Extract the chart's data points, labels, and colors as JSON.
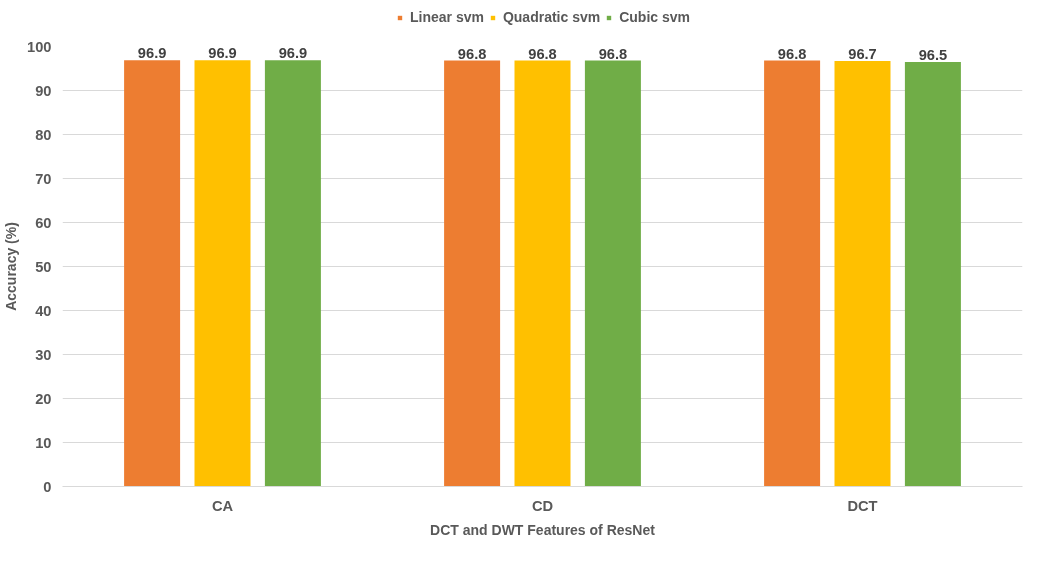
{
  "chart_data": {
    "type": "bar",
    "xlabel": "DCT and DWT Features of ResNet",
    "ylabel": "Accuracy (%)",
    "categories": [
      "CA",
      "CD",
      "DCT"
    ],
    "series": [
      {
        "name": "Linear svm",
        "color": "#ed7d31",
        "values": [
          96.9,
          96.8,
          96.8
        ]
      },
      {
        "name": "Quadratic svm",
        "color": "#ffc000",
        "values": [
          96.9,
          96.8,
          96.7
        ]
      },
      {
        "name": "Cubic svm",
        "color": "#70ad47",
        "values": [
          96.9,
          96.8,
          96.5
        ]
      }
    ],
    "ylim": [
      0,
      100
    ],
    "yticks": [
      0,
      10,
      20,
      30,
      40,
      50,
      60,
      70,
      80,
      90,
      100
    ],
    "grid": "y",
    "legend": "top",
    "data_labels": true
  }
}
